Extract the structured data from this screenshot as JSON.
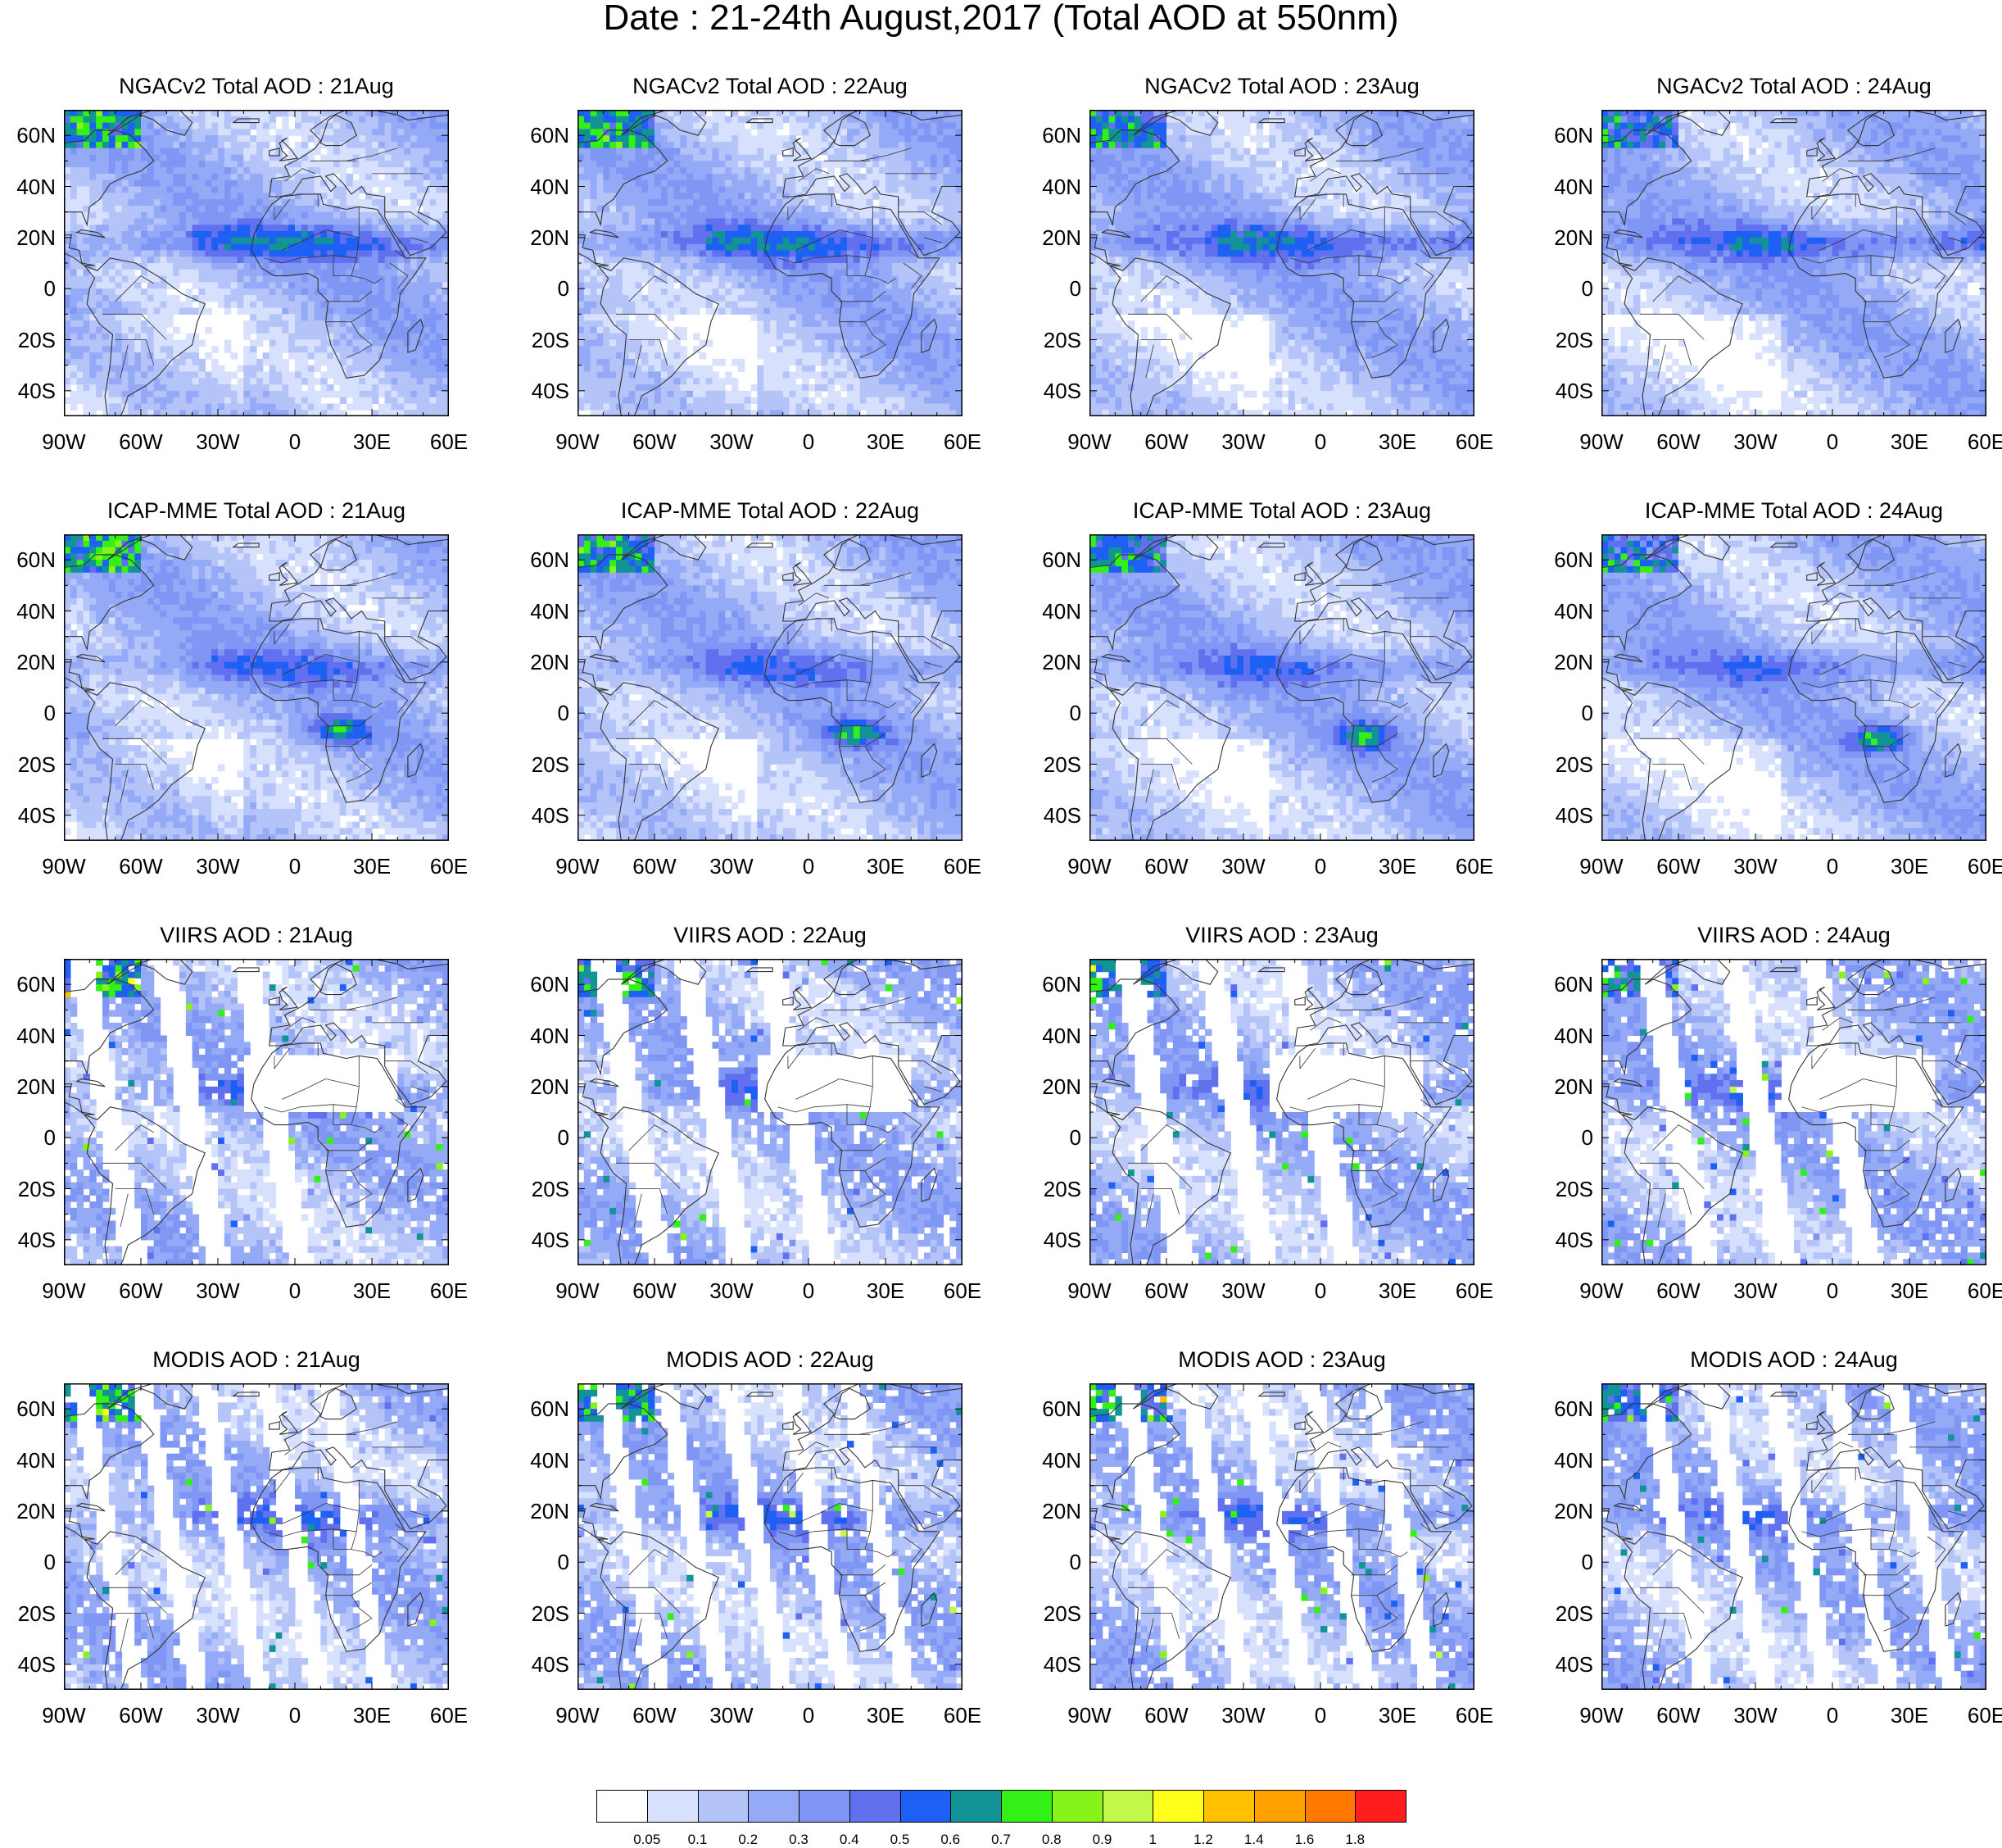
{
  "title": "Date : 21-24th August,2017 (Total AOD at 550nm)",
  "lat_ticks": [
    "60N",
    "40N",
    "20N",
    "0",
    "20S",
    "40S"
  ],
  "lon_ticks": [
    "90W",
    "60W",
    "30W",
    "0",
    "30E",
    "60E"
  ],
  "panels": [
    {
      "title": "NGACv2 Total AOD : 21Aug",
      "kind": "model-ngac",
      "seed": 11
    },
    {
      "title": "NGACv2 Total AOD : 22Aug",
      "kind": "model-ngac",
      "seed": 12
    },
    {
      "title": "NGACv2 Total AOD : 23Aug",
      "kind": "model-ngac",
      "seed": 13
    },
    {
      "title": "NGACv2 Total AOD : 24Aug",
      "kind": "model-ngac",
      "seed": 14
    },
    {
      "title": "ICAP-MME Total AOD : 21Aug",
      "kind": "model-icap",
      "seed": 21
    },
    {
      "title": "ICAP-MME Total AOD : 22Aug",
      "kind": "model-icap",
      "seed": 22
    },
    {
      "title": "ICAP-MME Total AOD : 23Aug",
      "kind": "model-icap",
      "seed": 23
    },
    {
      "title": "ICAP-MME Total AOD : 24Aug",
      "kind": "model-icap",
      "seed": 24
    },
    {
      "title": "VIIRS AOD : 21Aug",
      "kind": "sat-viirs",
      "seed": 31
    },
    {
      "title": "VIIRS AOD : 22Aug",
      "kind": "sat-viirs",
      "seed": 32
    },
    {
      "title": "VIIRS AOD : 23Aug",
      "kind": "sat-viirs",
      "seed": 33
    },
    {
      "title": "VIIRS AOD : 24Aug",
      "kind": "sat-viirs",
      "seed": 34
    },
    {
      "title": "MODIS AOD : 21Aug",
      "kind": "sat-modis",
      "seed": 41
    },
    {
      "title": "MODIS AOD : 22Aug",
      "kind": "sat-modis",
      "seed": 42
    },
    {
      "title": "MODIS AOD : 23Aug",
      "kind": "sat-modis",
      "seed": 43
    },
    {
      "title": "MODIS AOD : 24Aug",
      "kind": "sat-modis",
      "seed": 44
    }
  ],
  "colorbar": {
    "colors": [
      "#ffffff",
      "#d7e0fc",
      "#b4c3f8",
      "#95aaf6",
      "#7f96f4",
      "#6070ee",
      "#1e5ff4",
      "#129496",
      "#33f016",
      "#86f41a",
      "#c2f848",
      "#ffff1a",
      "#ffc000",
      "#ffa000",
      "#ff7800",
      "#ff1e1e"
    ],
    "labels": [
      "0.05",
      "0.1",
      "0.2",
      "0.3",
      "0.4",
      "0.5",
      "0.6",
      "0.7",
      "0.8",
      "0.9",
      "1",
      "1.2",
      "1.4",
      "1.6",
      "1.8"
    ]
  }
}
